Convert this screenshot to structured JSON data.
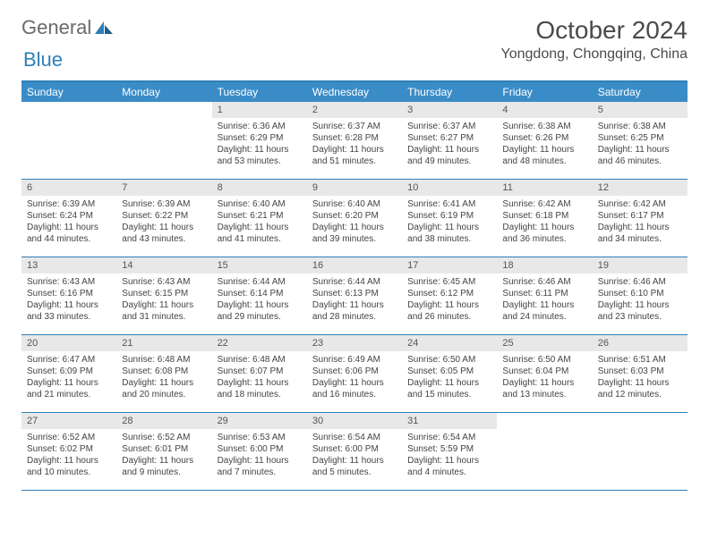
{
  "brand": {
    "part1": "General",
    "part2": "Blue"
  },
  "title": "October 2024",
  "location": "Yongdong, Chongqing, China",
  "colors": {
    "header_bg": "#3a8cc7",
    "header_text": "#ffffff",
    "border": "#2f7fb7",
    "daynum_bg": "#e8e8e8",
    "text": "#444444",
    "logo_gray": "#6a6a6a",
    "logo_blue": "#2f7fb7"
  },
  "day_headers": [
    "Sunday",
    "Monday",
    "Tuesday",
    "Wednesday",
    "Thursday",
    "Friday",
    "Saturday"
  ],
  "weeks": [
    [
      {
        "day": "",
        "sunrise": "",
        "sunset": "",
        "daylight": ""
      },
      {
        "day": "",
        "sunrise": "",
        "sunset": "",
        "daylight": ""
      },
      {
        "day": "1",
        "sunrise": "Sunrise: 6:36 AM",
        "sunset": "Sunset: 6:29 PM",
        "daylight": "Daylight: 11 hours and 53 minutes."
      },
      {
        "day": "2",
        "sunrise": "Sunrise: 6:37 AM",
        "sunset": "Sunset: 6:28 PM",
        "daylight": "Daylight: 11 hours and 51 minutes."
      },
      {
        "day": "3",
        "sunrise": "Sunrise: 6:37 AM",
        "sunset": "Sunset: 6:27 PM",
        "daylight": "Daylight: 11 hours and 49 minutes."
      },
      {
        "day": "4",
        "sunrise": "Sunrise: 6:38 AM",
        "sunset": "Sunset: 6:26 PM",
        "daylight": "Daylight: 11 hours and 48 minutes."
      },
      {
        "day": "5",
        "sunrise": "Sunrise: 6:38 AM",
        "sunset": "Sunset: 6:25 PM",
        "daylight": "Daylight: 11 hours and 46 minutes."
      }
    ],
    [
      {
        "day": "6",
        "sunrise": "Sunrise: 6:39 AM",
        "sunset": "Sunset: 6:24 PM",
        "daylight": "Daylight: 11 hours and 44 minutes."
      },
      {
        "day": "7",
        "sunrise": "Sunrise: 6:39 AM",
        "sunset": "Sunset: 6:22 PM",
        "daylight": "Daylight: 11 hours and 43 minutes."
      },
      {
        "day": "8",
        "sunrise": "Sunrise: 6:40 AM",
        "sunset": "Sunset: 6:21 PM",
        "daylight": "Daylight: 11 hours and 41 minutes."
      },
      {
        "day": "9",
        "sunrise": "Sunrise: 6:40 AM",
        "sunset": "Sunset: 6:20 PM",
        "daylight": "Daylight: 11 hours and 39 minutes."
      },
      {
        "day": "10",
        "sunrise": "Sunrise: 6:41 AM",
        "sunset": "Sunset: 6:19 PM",
        "daylight": "Daylight: 11 hours and 38 minutes."
      },
      {
        "day": "11",
        "sunrise": "Sunrise: 6:42 AM",
        "sunset": "Sunset: 6:18 PM",
        "daylight": "Daylight: 11 hours and 36 minutes."
      },
      {
        "day": "12",
        "sunrise": "Sunrise: 6:42 AM",
        "sunset": "Sunset: 6:17 PM",
        "daylight": "Daylight: 11 hours and 34 minutes."
      }
    ],
    [
      {
        "day": "13",
        "sunrise": "Sunrise: 6:43 AM",
        "sunset": "Sunset: 6:16 PM",
        "daylight": "Daylight: 11 hours and 33 minutes."
      },
      {
        "day": "14",
        "sunrise": "Sunrise: 6:43 AM",
        "sunset": "Sunset: 6:15 PM",
        "daylight": "Daylight: 11 hours and 31 minutes."
      },
      {
        "day": "15",
        "sunrise": "Sunrise: 6:44 AM",
        "sunset": "Sunset: 6:14 PM",
        "daylight": "Daylight: 11 hours and 29 minutes."
      },
      {
        "day": "16",
        "sunrise": "Sunrise: 6:44 AM",
        "sunset": "Sunset: 6:13 PM",
        "daylight": "Daylight: 11 hours and 28 minutes."
      },
      {
        "day": "17",
        "sunrise": "Sunrise: 6:45 AM",
        "sunset": "Sunset: 6:12 PM",
        "daylight": "Daylight: 11 hours and 26 minutes."
      },
      {
        "day": "18",
        "sunrise": "Sunrise: 6:46 AM",
        "sunset": "Sunset: 6:11 PM",
        "daylight": "Daylight: 11 hours and 24 minutes."
      },
      {
        "day": "19",
        "sunrise": "Sunrise: 6:46 AM",
        "sunset": "Sunset: 6:10 PM",
        "daylight": "Daylight: 11 hours and 23 minutes."
      }
    ],
    [
      {
        "day": "20",
        "sunrise": "Sunrise: 6:47 AM",
        "sunset": "Sunset: 6:09 PM",
        "daylight": "Daylight: 11 hours and 21 minutes."
      },
      {
        "day": "21",
        "sunrise": "Sunrise: 6:48 AM",
        "sunset": "Sunset: 6:08 PM",
        "daylight": "Daylight: 11 hours and 20 minutes."
      },
      {
        "day": "22",
        "sunrise": "Sunrise: 6:48 AM",
        "sunset": "Sunset: 6:07 PM",
        "daylight": "Daylight: 11 hours and 18 minutes."
      },
      {
        "day": "23",
        "sunrise": "Sunrise: 6:49 AM",
        "sunset": "Sunset: 6:06 PM",
        "daylight": "Daylight: 11 hours and 16 minutes."
      },
      {
        "day": "24",
        "sunrise": "Sunrise: 6:50 AM",
        "sunset": "Sunset: 6:05 PM",
        "daylight": "Daylight: 11 hours and 15 minutes."
      },
      {
        "day": "25",
        "sunrise": "Sunrise: 6:50 AM",
        "sunset": "Sunset: 6:04 PM",
        "daylight": "Daylight: 11 hours and 13 minutes."
      },
      {
        "day": "26",
        "sunrise": "Sunrise: 6:51 AM",
        "sunset": "Sunset: 6:03 PM",
        "daylight": "Daylight: 11 hours and 12 minutes."
      }
    ],
    [
      {
        "day": "27",
        "sunrise": "Sunrise: 6:52 AM",
        "sunset": "Sunset: 6:02 PM",
        "daylight": "Daylight: 11 hours and 10 minutes."
      },
      {
        "day": "28",
        "sunrise": "Sunrise: 6:52 AM",
        "sunset": "Sunset: 6:01 PM",
        "daylight": "Daylight: 11 hours and 9 minutes."
      },
      {
        "day": "29",
        "sunrise": "Sunrise: 6:53 AM",
        "sunset": "Sunset: 6:00 PM",
        "daylight": "Daylight: 11 hours and 7 minutes."
      },
      {
        "day": "30",
        "sunrise": "Sunrise: 6:54 AM",
        "sunset": "Sunset: 6:00 PM",
        "daylight": "Daylight: 11 hours and 5 minutes."
      },
      {
        "day": "31",
        "sunrise": "Sunrise: 6:54 AM",
        "sunset": "Sunset: 5:59 PM",
        "daylight": "Daylight: 11 hours and 4 minutes."
      },
      {
        "day": "",
        "sunrise": "",
        "sunset": "",
        "daylight": ""
      },
      {
        "day": "",
        "sunrise": "",
        "sunset": "",
        "daylight": ""
      }
    ]
  ]
}
